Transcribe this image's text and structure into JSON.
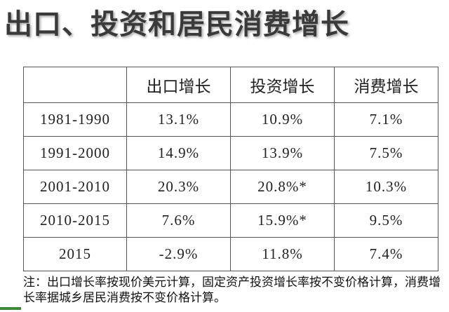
{
  "title": "出口、投资和居民消费增长",
  "table": {
    "header": [
      "",
      "出口增长",
      "投资增长",
      "消费增长"
    ],
    "rows": [
      [
        "1981-1990",
        "13.1%",
        "10.9%",
        "7.1%"
      ],
      [
        "1991-2000",
        "14.9%",
        "13.9%",
        "7.5%"
      ],
      [
        "2001-2010",
        "20.3%",
        "20.8%*",
        "10.3%"
      ],
      [
        "2010-2015",
        "7.6%",
        "15.9%*",
        "9.5%"
      ],
      [
        "2015",
        "-2.9%",
        "11.8%",
        "7.4%"
      ]
    ]
  },
  "note": "注：出口增长率按现价美元计算，固定资产投资增长率按不变价格计算，消费增长率据城乡居民消费按不变价格计算。"
}
